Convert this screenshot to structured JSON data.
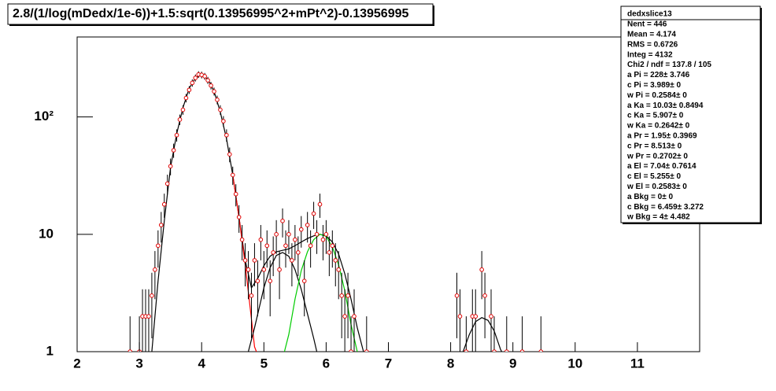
{
  "chart_data": {
    "type": "errorbar",
    "title": "2.8/(1/log(mDedx/1e-6))+1.5:sqrt(0.13956995^2+mPt^2)-0.13956995",
    "log_y": true,
    "marker_color": "#e00000",
    "xlim": [
      2,
      12
    ],
    "xticks": [
      2,
      3,
      4,
      5,
      6,
      7,
      8,
      9,
      10,
      11
    ],
    "ylim": [
      1,
      480
    ],
    "yticks": [
      1,
      10,
      {
        "value": 100,
        "label": "10²"
      }
    ],
    "x": [
      2.85,
      3.0,
      3.05,
      3.1,
      3.15,
      3.2,
      3.25,
      3.3,
      3.35,
      3.4,
      3.45,
      3.5,
      3.55,
      3.6,
      3.65,
      3.7,
      3.75,
      3.8,
      3.85,
      3.9,
      3.95,
      4.0,
      4.05,
      4.1,
      4.15,
      4.2,
      4.25,
      4.3,
      4.35,
      4.4,
      4.45,
      4.5,
      4.55,
      4.6,
      4.65,
      4.7,
      4.75,
      4.8,
      4.85,
      4.9,
      4.95,
      5.0,
      5.05,
      5.1,
      5.15,
      5.2,
      5.25,
      5.3,
      5.35,
      5.4,
      5.45,
      5.5,
      5.55,
      5.6,
      5.65,
      5.7,
      5.75,
      5.8,
      5.85,
      5.9,
      5.95,
      6.0,
      6.05,
      6.1,
      6.15,
      6.2,
      6.25,
      6.3,
      6.35,
      6.4,
      6.45,
      6.65,
      8.1,
      8.15,
      8.25,
      8.35,
      8.4,
      8.5,
      8.55,
      8.65,
      8.7,
      8.9,
      9.15,
      9.45
    ],
    "values": [
      1,
      1,
      2,
      2,
      2,
      3,
      5,
      8,
      12,
      18,
      27,
      38,
      52,
      70,
      95,
      115,
      145,
      170,
      195,
      215,
      230,
      228,
      222,
      205,
      185,
      165,
      140,
      115,
      92,
      70,
      48,
      32,
      22,
      14,
      9,
      6,
      5,
      3,
      6,
      4,
      9,
      5,
      8,
      4,
      7,
      10,
      5,
      13,
      8,
      10,
      6,
      9,
      7,
      11,
      4,
      12,
      8,
      15,
      10,
      18,
      9,
      10,
      7,
      8,
      6,
      5,
      3,
      2,
      3,
      1,
      2,
      1,
      3,
      2,
      1,
      2,
      2,
      5,
      3,
      2,
      1,
      1,
      1,
      1
    ],
    "errors": [
      1,
      1,
      1.4,
      1.4,
      1.4,
      1.7,
      2.2,
      2.8,
      3.5,
      4.2,
      5.2,
      6.2,
      7.2,
      8.4,
      9.7,
      10.7,
      12,
      13,
      14,
      14.7,
      15.2,
      15.1,
      14.9,
      14.3,
      13.6,
      12.8,
      11.8,
      10.7,
      9.6,
      8.4,
      6.9,
      5.7,
      4.7,
      3.7,
      3,
      2.4,
      2.2,
      1.7,
      2.4,
      2,
      3,
      2.2,
      2.8,
      2,
      2.6,
      3.2,
      2.2,
      3.6,
      2.8,
      3.2,
      2.4,
      3,
      2.6,
      3.3,
      2,
      3.5,
      2.8,
      3.9,
      3.2,
      4.2,
      3,
      3.2,
      2.6,
      2.8,
      2.4,
      2.2,
      1.7,
      1.4,
      1.7,
      1,
      1.4,
      1,
      1.7,
      1.4,
      1,
      1.4,
      1.4,
      2.2,
      1.7,
      1.4,
      1,
      1,
      1,
      1
    ],
    "curves": [
      {
        "color": "#000000",
        "x": [
          3.2,
          3.3,
          3.4,
          3.5,
          3.6,
          3.7,
          3.8,
          3.9,
          4.0,
          4.1,
          4.2,
          4.3,
          4.4,
          4.5,
          4.6,
          4.7,
          4.8,
          4.9,
          5.0,
          5.1,
          5.2,
          5.3,
          5.4,
          5.5,
          5.6,
          5.7,
          5.8,
          5.9,
          6.0,
          6.1,
          6.2,
          6.3,
          6.4,
          6.5,
          6.6
        ],
        "values": [
          1,
          4,
          13,
          37,
          72,
          120,
          175,
          215,
          228,
          210,
          165,
          110,
          65,
          32,
          14,
          6,
          3.5,
          4.2,
          5.4,
          6.5,
          7.1,
          7.3,
          7.5,
          8.0,
          8.6,
          9.2,
          9.7,
          10.0,
          9.7,
          8.6,
          6.8,
          4.6,
          2.8,
          1.6,
          1.0
        ]
      },
      {
        "color": "#ff0000",
        "x": [
          4.5,
          4.6,
          4.7,
          4.8,
          4.85,
          4.88
        ],
        "values": [
          32,
          14,
          5.5,
          1.9,
          1.1,
          1
        ]
      },
      {
        "color": "#000000",
        "x": [
          4.75,
          4.85,
          5.0,
          5.1,
          5.2,
          5.3,
          5.4,
          5.5,
          5.6,
          5.7,
          5.8,
          5.85
        ],
        "values": [
          1,
          1.6,
          3.5,
          5.2,
          6.6,
          7.0,
          6.5,
          5.0,
          3.4,
          2.1,
          1.3,
          1
        ]
      },
      {
        "color": "#00cc00",
        "x": [
          5.33,
          5.4,
          5.5,
          5.6,
          5.7,
          5.8,
          5.9,
          6.0,
          6.1,
          6.2,
          6.3,
          6.4,
          6.5
        ],
        "values": [
          1,
          1.4,
          2.8,
          4.9,
          7.1,
          9.0,
          10.0,
          9.6,
          7.8,
          5.5,
          3.3,
          1.7,
          1
        ]
      },
      {
        "color": "#000000",
        "x": [
          8.2,
          8.3,
          8.4,
          8.5,
          8.6,
          8.7,
          8.8,
          8.82
        ],
        "values": [
          1,
          1.4,
          1.8,
          1.95,
          1.85,
          1.5,
          1.05,
          1
        ]
      }
    ],
    "stats_title": "dedxslice13",
    "stats": [
      "Nent = 446",
      "Mean  =  4.174",
      "RMS   = 0.6726",
      "Integ  =   4132",
      "Chi2 / ndf = 137.8 / 105",
      "a Pi     =   228± 3.746",
      "c Pi    = 3.989±     0",
      "w Pi    = 0.2584±     0",
      "a Ka    = 10.03± 0.8494",
      "c Ka    = 5.907±     0",
      "w Ka    = 0.2642±     0",
      "a Pr     =  1.95± 0.3969",
      "c Pr    = 8.513±     0",
      "w Pr    = 0.2702±     0",
      "a El    =  7.04± 0.7614",
      "c El    = 5.255±     0",
      "w El    = 0.2583±     0",
      "a Bkg    =     0±     0",
      "c Bkg    = 6.459± 3.272",
      "w Bkg    =     4± 4.482"
    ]
  }
}
